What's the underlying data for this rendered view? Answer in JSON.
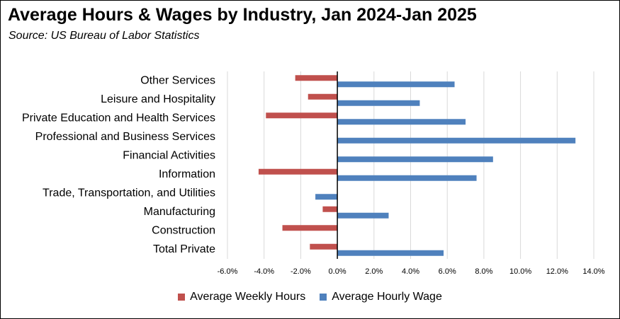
{
  "title": "Average Hours & Wages by Industry, Jan 2024-Jan 2025",
  "subtitle": "Source:  US Bureau of Labor Statistics",
  "chart_data": {
    "type": "bar",
    "orientation": "horizontal",
    "categories": [
      "Other Services",
      "Leisure and Hospitality",
      "Private Education and Health Services",
      "Professional and Business Services",
      "Financial Activities",
      "Information",
      "Trade, Transportation, and Utilities",
      "Manufacturing",
      "Construction",
      "Total Private"
    ],
    "series": [
      {
        "name": "Average Weekly Hours",
        "color": "#c0504d",
        "values": [
          -2.3,
          -1.6,
          -3.9,
          0.0,
          0.0,
          -4.3,
          0.0,
          -0.8,
          -3.0,
          -1.5
        ]
      },
      {
        "name": "Average Hourly Wage",
        "color": "#4f81bd",
        "values": [
          6.4,
          4.5,
          7.0,
          13.0,
          8.5,
          7.6,
          -1.2,
          2.8,
          0.0,
          5.8
        ]
      }
    ],
    "xlim": [
      -6,
      14
    ],
    "xticks": [
      "-6.0%",
      "-4.0%",
      "-2.0%",
      "0.0%",
      "2.0%",
      "4.0%",
      "6.0%",
      "8.0%",
      "10.0%",
      "12.0%",
      "14.0%"
    ],
    "grid": true,
    "legend_position": "bottom"
  }
}
